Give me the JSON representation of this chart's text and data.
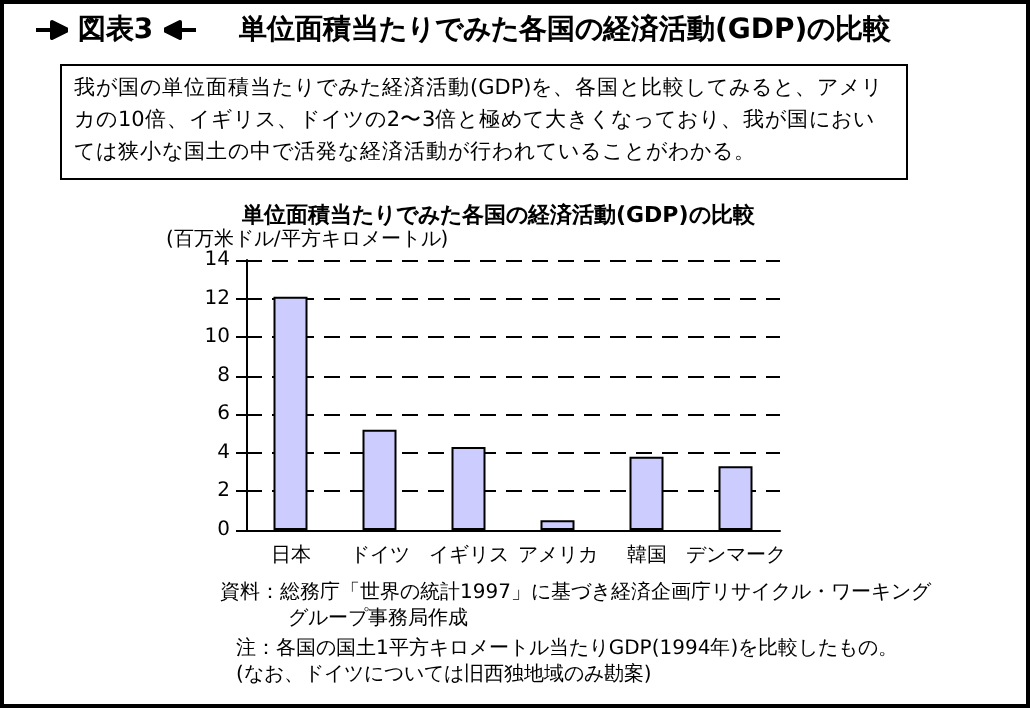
{
  "chart_data": {
    "type": "bar",
    "title": "単位面積当たりでみた各国の経済活動(GDP)の比較",
    "ylabel": "(百万米ドル/平方キロメートル)",
    "annotations": [
      "図表3",
      "単位面積当たりでみた各国の経済活動(GDP)の比較",
      "我が国の単位面積当たりでみた経済活動(GDP)を、各国と比較してみると、アメリカの10倍、イギリス、ドイツの2〜3倍と極めて大きくなっており、我が国においては狭小な国土の中で活発な経済活動が行われていることがわかる。",
      "資料：総務庁「世界の統計1997」に基づき経済企画庁リサイクル・ワーキンググループ事務局作成",
      "注：各国の国土1平方キロメートル当たりGDP(1994年)を比較したもの。\n(なお、ドイツについては旧西独地域のみ勘案)"
    ],
    "categories": [
      "日本",
      "ドイツ",
      "イギリス",
      "アメリカ",
      "韓国",
      "デンマーク"
    ],
    "values": [
      12.1,
      5.2,
      4.3,
      0.5,
      3.8,
      3.3
    ],
    "color": "#ccccff",
    "ylim": [
      0,
      14
    ],
    "yticks": [
      0,
      2,
      4,
      6,
      8,
      10,
      12,
      14
    ],
    "grid": "y"
  }
}
